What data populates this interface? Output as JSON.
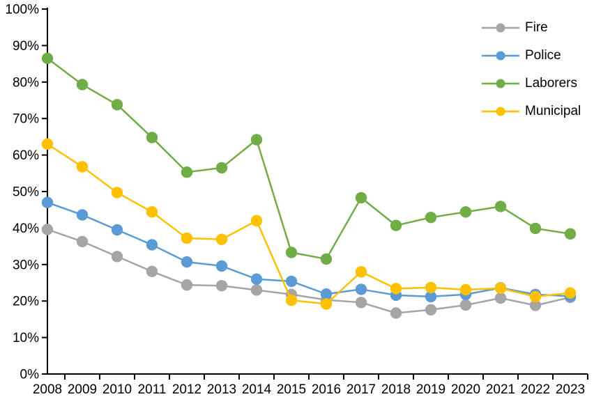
{
  "chart_data": {
    "type": "line",
    "title": "",
    "xlabel": "",
    "ylabel": "",
    "x": [
      "2008",
      "2009",
      "2010",
      "2011",
      "2012",
      "2013",
      "2014",
      "2015",
      "2016",
      "2017",
      "2018",
      "2019",
      "2020",
      "2021",
      "2022",
      "2023"
    ],
    "ylim": [
      0,
      100
    ],
    "y_tick_step": 10,
    "y_tick_labels": [
      "0%",
      "10%",
      "20%",
      "30%",
      "40%",
      "50%",
      "60%",
      "70%",
      "80%",
      "90%",
      "100%"
    ],
    "grid": false,
    "legend_position": "top-right-inside",
    "axis_color": "#000000",
    "series": [
      {
        "name": "Fire",
        "color": "#A5A5A5",
        "values": [
          39.6,
          36.3,
          32.2,
          28.1,
          24.4,
          24.2,
          23.0,
          21.8,
          20.3,
          19.6,
          16.7,
          17.6,
          18.9,
          20.8,
          18.8,
          21.0
        ]
      },
      {
        "name": "Police",
        "color": "#5B9BD5",
        "values": [
          47.0,
          43.6,
          39.5,
          35.4,
          30.7,
          29.6,
          26.0,
          25.4,
          21.9,
          23.2,
          21.6,
          21.2,
          21.8,
          23.6,
          21.8,
          21.3
        ]
      },
      {
        "name": "Laborers",
        "color": "#70AD47",
        "values": [
          86.5,
          79.3,
          73.8,
          64.8,
          55.3,
          56.5,
          64.2,
          33.3,
          31.5,
          48.3,
          40.7,
          42.9,
          44.4,
          45.9,
          39.9,
          38.4
        ]
      },
      {
        "name": "Municipal",
        "color": "#FFC000",
        "values": [
          63.0,
          56.8,
          49.7,
          44.4,
          37.2,
          36.9,
          42.0,
          20.2,
          19.2,
          28.0,
          23.4,
          23.7,
          23.1,
          23.5,
          21.2,
          22.2
        ]
      }
    ]
  }
}
